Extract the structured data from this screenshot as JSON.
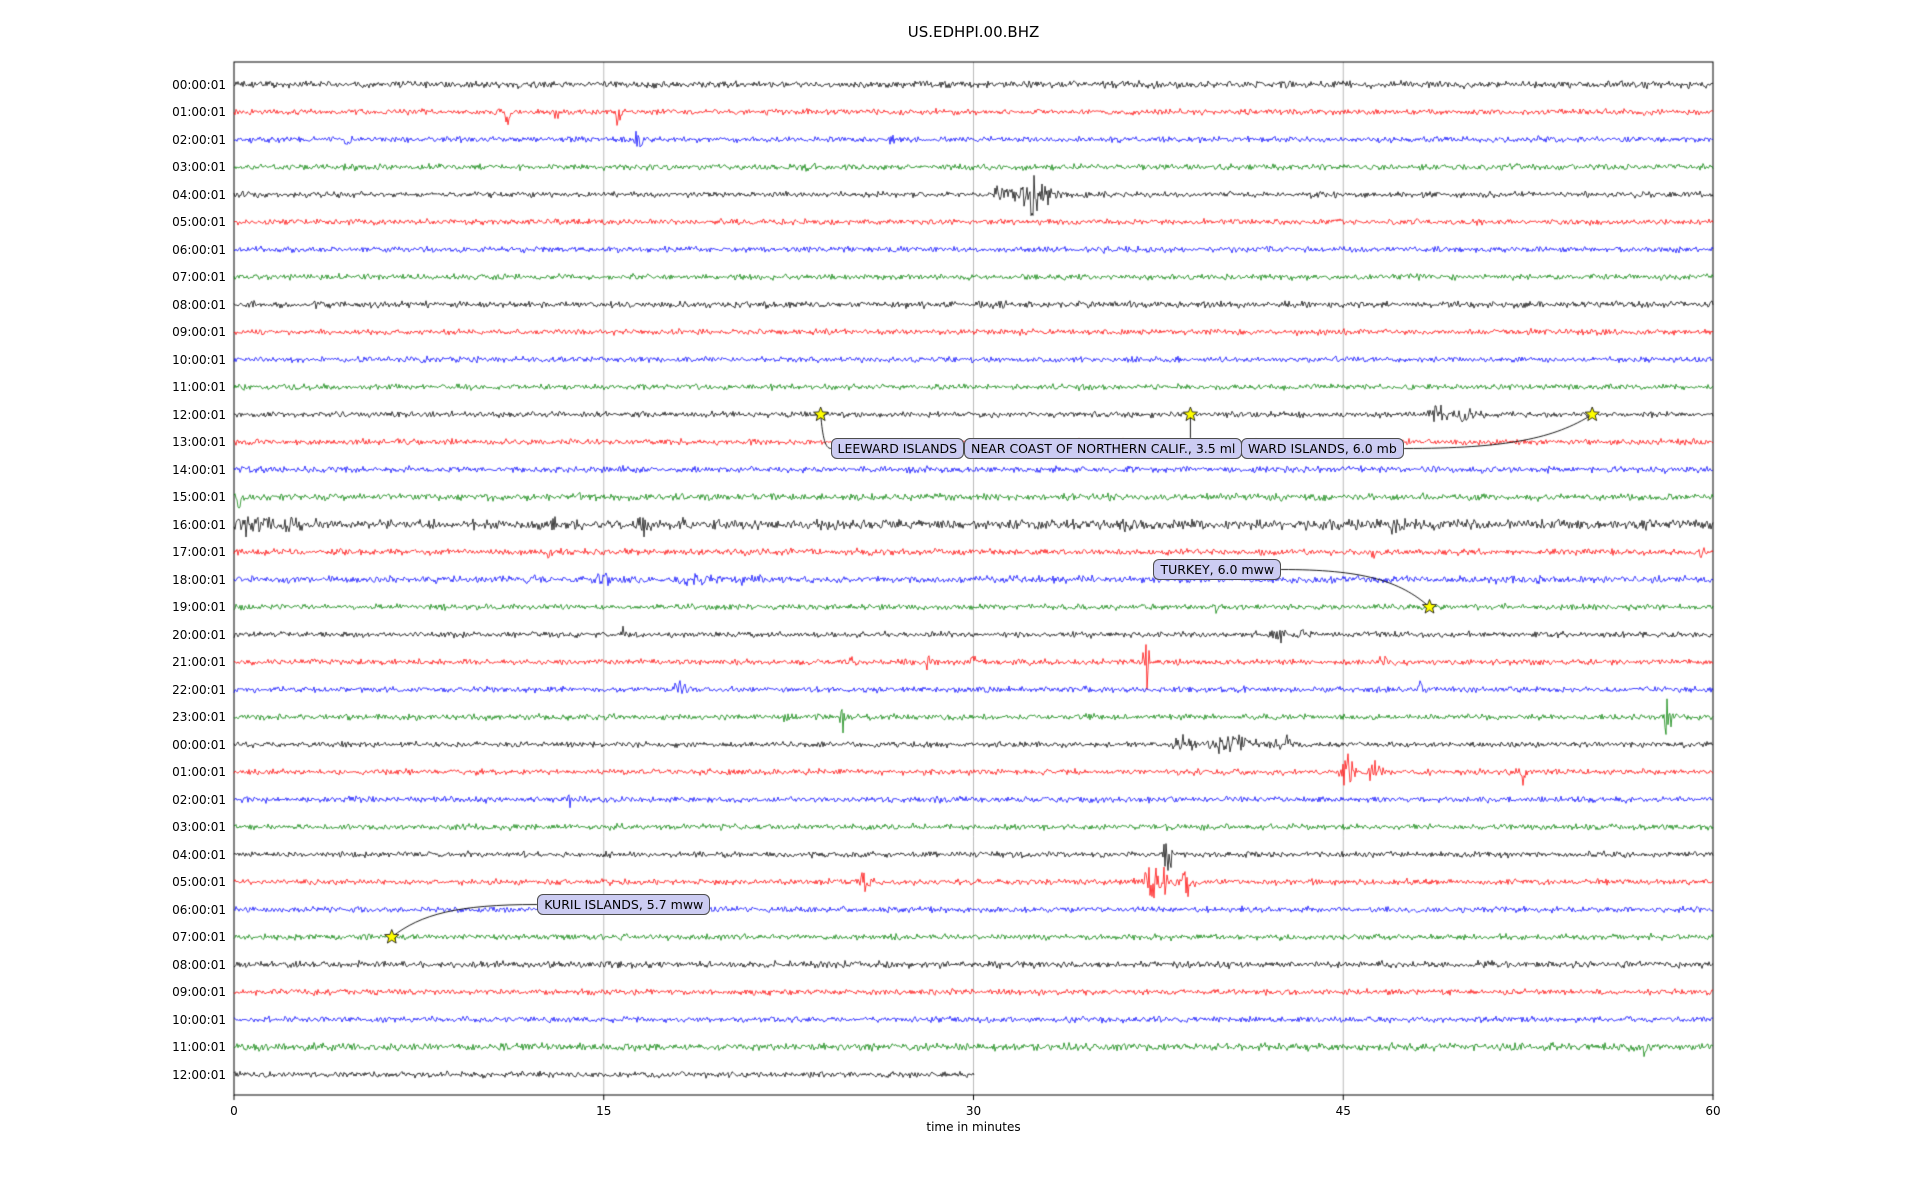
{
  "title": "US.EDHPI.00.BHZ",
  "chart_data": {
    "type": "line",
    "subtype": "helicorder-dayplot",
    "title": "US.EDHPI.00.BHZ",
    "xlabel": "time in minutes",
    "x_range_minutes": [
      0,
      60
    ],
    "x_ticks": [
      0,
      15,
      30,
      45,
      60
    ],
    "grid_minutes": [
      15,
      30,
      45
    ],
    "grid_color": "#b3b3b3",
    "palette": {
      "black": "#000000",
      "red": "#ff0000",
      "blue": "#0000ff",
      "green": "#008000"
    },
    "star_color": "#ffff00",
    "label_box_bg": "#ccccf2",
    "rows": [
      {
        "label": "00:00:01",
        "color": "black",
        "noise": 1.2
      },
      {
        "label": "01:00:01",
        "color": "red",
        "bursts": [
          {
            "m": 11.1,
            "w": 0.1,
            "a": 8,
            "d": -1
          },
          {
            "m": 13.1,
            "w": 0.1,
            "a": 5,
            "d": -1
          },
          {
            "m": 15.6,
            "w": 0.12,
            "a": 7,
            "d": -1
          }
        ]
      },
      {
        "label": "02:00:01",
        "color": "blue",
        "bursts": [
          {
            "m": 4.6,
            "w": 0.12,
            "a": 6,
            "d": -1
          },
          {
            "m": 16.4,
            "w": 0.18,
            "a": 5
          },
          {
            "m": 26.7,
            "w": 0.12,
            "a": 3.5
          }
        ]
      },
      {
        "label": "03:00:01",
        "color": "green",
        "bursts": [
          {
            "m": 23.4,
            "w": 0.3,
            "a": 2
          }
        ]
      },
      {
        "label": "04:00:01",
        "color": "black",
        "bursts": [
          {
            "m": 31.2,
            "w": 0.5,
            "a": 4
          },
          {
            "m": 32.3,
            "w": 0.6,
            "a": 8
          },
          {
            "m": 33.1,
            "w": 0.4,
            "a": 4
          }
        ]
      },
      {
        "label": "05:00:01",
        "color": "red"
      },
      {
        "label": "06:00:01",
        "color": "blue"
      },
      {
        "label": "07:00:01",
        "color": "green"
      },
      {
        "label": "08:00:01",
        "color": "black",
        "noise": 1.15
      },
      {
        "label": "09:00:01",
        "color": "red"
      },
      {
        "label": "10:00:01",
        "color": "blue"
      },
      {
        "label": "11:00:01",
        "color": "green"
      },
      {
        "label": "12:00:01",
        "color": "black",
        "bursts": [
          {
            "m": 48.8,
            "w": 0.5,
            "a": 4
          },
          {
            "m": 50.0,
            "w": 0.8,
            "a": 2.5
          }
        ]
      },
      {
        "label": "13:00:01",
        "color": "red"
      },
      {
        "label": "14:00:01",
        "color": "blue",
        "noise": 1.1
      },
      {
        "label": "15:00:01",
        "color": "green",
        "noise": 1.2,
        "bursts": [
          {
            "m": 0.2,
            "w": 0.15,
            "a": 5
          }
        ]
      },
      {
        "label": "16:00:01",
        "color": "black",
        "noise": 1.7,
        "bursts": [
          {
            "m": 0.3,
            "w": 0.2,
            "a": 5
          },
          {
            "m": 0.9,
            "w": 0.8,
            "a": 4
          },
          {
            "m": 2.4,
            "w": 0.6,
            "a": 3
          },
          {
            "m": 13.0,
            "w": 0.3,
            "a": 4
          },
          {
            "m": 16.6,
            "w": 0.3,
            "a": 4
          },
          {
            "m": 18.2,
            "w": 0.3,
            "a": 3
          },
          {
            "m": 28.0,
            "w": 0.3,
            "a": 2
          },
          {
            "m": 36.2,
            "w": 0.3,
            "a": 2.5
          },
          {
            "m": 47.2,
            "w": 0.5,
            "a": 3
          }
        ]
      },
      {
        "label": "17:00:01",
        "color": "red",
        "noise": 1.1,
        "bursts": [
          {
            "m": 12.8,
            "w": 0.12,
            "a": 4
          },
          {
            "m": 46.2,
            "w": 0.12,
            "a": 3.5
          },
          {
            "m": 59.6,
            "w": 0.15,
            "a": 4
          }
        ]
      },
      {
        "label": "18:00:01",
        "color": "blue",
        "noise": 1.25,
        "bursts": [
          {
            "m": 15.0,
            "w": 0.8,
            "a": 2.5
          },
          {
            "m": 18.6,
            "w": 0.8,
            "a": 2.5
          },
          {
            "m": 21.0,
            "w": 0.6,
            "a": 2
          }
        ]
      },
      {
        "label": "19:00:01",
        "color": "green",
        "bursts": [
          {
            "m": 39.8,
            "w": 0.12,
            "a": 3.5
          }
        ]
      },
      {
        "label": "20:00:01",
        "color": "black",
        "bursts": [
          {
            "m": 15.8,
            "w": 0.12,
            "a": 5
          },
          {
            "m": 42.4,
            "w": 0.5,
            "a": 2.5
          },
          {
            "m": 43.3,
            "w": 0.3,
            "a": 2
          }
        ]
      },
      {
        "label": "21:00:01",
        "color": "red",
        "bursts": [
          {
            "m": 25.1,
            "w": 0.12,
            "a": 4
          },
          {
            "m": 28.2,
            "w": 0.2,
            "a": 5
          },
          {
            "m": 30.0,
            "w": 0.15,
            "a": 4
          },
          {
            "m": 37.0,
            "w": 0.18,
            "a": 10
          },
          {
            "m": 46.6,
            "w": 0.2,
            "a": 4.5
          }
        ]
      },
      {
        "label": "22:00:01",
        "color": "blue",
        "bursts": [
          {
            "m": 18.1,
            "w": 0.4,
            "a": 4
          },
          {
            "m": 38.4,
            "w": 0.12,
            "a": 3.5
          },
          {
            "m": 48.2,
            "w": 0.3,
            "a": 3.5
          }
        ]
      },
      {
        "label": "23:00:01",
        "color": "green",
        "bursts": [
          {
            "m": 22.4,
            "w": 0.12,
            "a": 4
          },
          {
            "m": 24.7,
            "w": 0.12,
            "a": 5
          },
          {
            "m": 58.2,
            "w": 0.25,
            "a": 8
          }
        ]
      },
      {
        "label": "00:00:01",
        "color": "black",
        "bursts": [
          {
            "m": 38.5,
            "w": 0.6,
            "a": 3
          },
          {
            "m": 40.5,
            "w": 0.9,
            "a": 4.5
          },
          {
            "m": 42.5,
            "w": 0.6,
            "a": 3
          }
        ]
      },
      {
        "label": "01:00:01",
        "color": "red",
        "bursts": [
          {
            "m": 45.2,
            "w": 0.35,
            "a": 6
          },
          {
            "m": 46.3,
            "w": 0.3,
            "a": 5
          },
          {
            "m": 48.5,
            "w": 0.15,
            "a": 3
          },
          {
            "m": 52.3,
            "w": 0.15,
            "a": 4
          }
        ]
      },
      {
        "label": "02:00:01",
        "color": "blue",
        "bursts": [
          {
            "m": 13.6,
            "w": 0.12,
            "a": 3.5
          }
        ]
      },
      {
        "label": "03:00:01",
        "color": "green"
      },
      {
        "label": "04:00:01",
        "color": "black",
        "bursts": [
          {
            "m": 37.9,
            "w": 0.2,
            "a": 11
          }
        ]
      },
      {
        "label": "05:00:01",
        "color": "red",
        "bursts": [
          {
            "m": 25.6,
            "w": 0.6,
            "a": 3.5
          },
          {
            "m": 37.4,
            "w": 0.6,
            "a": 7
          },
          {
            "m": 38.6,
            "w": 0.4,
            "a": 5
          }
        ]
      },
      {
        "label": "06:00:01",
        "color": "blue"
      },
      {
        "label": "07:00:01",
        "color": "green"
      },
      {
        "label": "08:00:01",
        "color": "black",
        "noise": 1.15
      },
      {
        "label": "09:00:01",
        "color": "red"
      },
      {
        "label": "10:00:01",
        "color": "blue"
      },
      {
        "label": "11:00:01",
        "color": "green",
        "noise": 1.25,
        "bursts": [
          {
            "m": 57.2,
            "w": 0.2,
            "a": 3
          }
        ]
      },
      {
        "label": "12:00:01",
        "color": "black",
        "noise": 1.1,
        "end": 30
      }
    ],
    "events": [
      {
        "label": "LEEWARD ISLANDS",
        "row": 12,
        "minute": 23.8,
        "box": {
          "minute": 24.2,
          "row": 13.25
        }
      },
      {
        "label": "NEAR COAST OF NORTHERN CALIF., 3.5 ml",
        "row": 12,
        "minute": 38.8,
        "box": {
          "attach_prev": true,
          "row": 13.25
        }
      },
      {
        "label": "WARD ISLANDS, 6.0 mb",
        "row": 12,
        "minute": 55.1,
        "box": {
          "attach_prev": true,
          "row": 13.25
        }
      },
      {
        "label": "TURKEY, 6.0 mww",
        "row": 19,
        "minute": 48.5,
        "box": {
          "minute": 37.3,
          "row": 17.65
        }
      },
      {
        "label": "KURIL ISLANDS, 5.7 mww",
        "row": 31,
        "minute": 6.4,
        "box": {
          "minute": 12.3,
          "row": 29.8
        }
      }
    ]
  }
}
